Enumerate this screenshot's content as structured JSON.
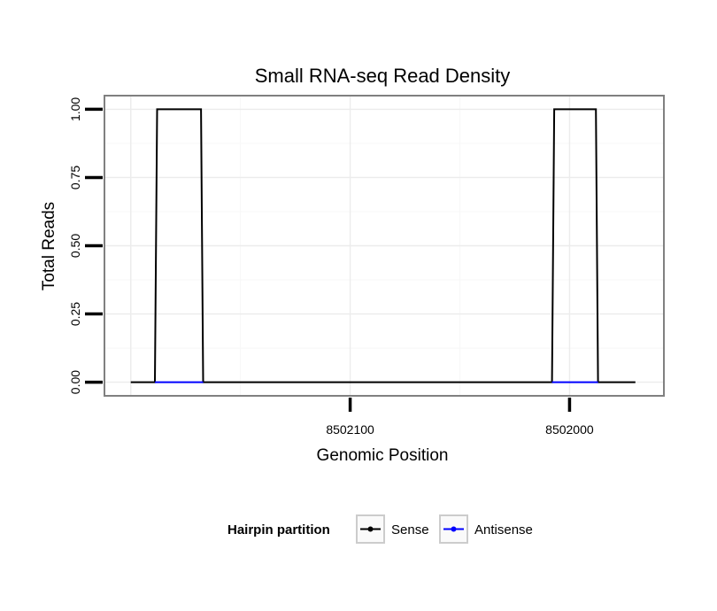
{
  "chart_data": {
    "type": "line",
    "title": "Small RNA-seq Read Density",
    "xlabel": "Genomic Position",
    "ylabel": "Total Reads",
    "xlim": [
      8502212,
      8501957
    ],
    "x_reversed": true,
    "ylim": [
      -0.05,
      1.05
    ],
    "x_ticks": [
      8502100,
      8502000
    ],
    "x_tick_labels": [
      "8502100",
      "8502000"
    ],
    "y_ticks": [
      0,
      0.25,
      0.5,
      0.75,
      1
    ],
    "y_tick_labels": [
      "0.00",
      "0.25",
      "0.50",
      "0.75",
      "1.00"
    ],
    "grid": true,
    "legend": {
      "title": "Hairpin partition",
      "position": "bottom",
      "entries": [
        {
          "name": "Sense",
          "color": "#000000"
        },
        {
          "name": "Antisense",
          "color": "#0000ff"
        }
      ]
    },
    "series": [
      {
        "name": "Sense",
        "color": "#000000",
        "x": [
          8502200,
          8502189,
          8502188,
          8502168,
          8502167,
          8502008,
          8502007,
          8501988,
          8501987,
          8501970
        ],
        "y": [
          0,
          0,
          1,
          1,
          0,
          0,
          1,
          1,
          0,
          0
        ]
      },
      {
        "name": "Antisense",
        "color": "#0000ff",
        "x": [
          8502189,
          8502167
        ],
        "y": [
          0,
          0
        ],
        "x2": [
          8502008,
          8501987
        ],
        "y2": [
          0,
          0
        ]
      }
    ]
  }
}
